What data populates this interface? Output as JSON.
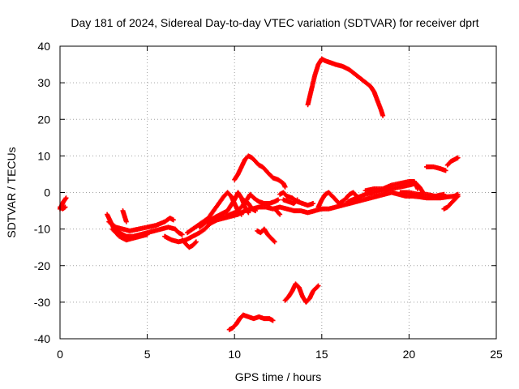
{
  "chart_data": {
    "type": "scatter",
    "title": "Day 181 of 2024, Sidereal Day-to-day VTEC variation (SDTVAR) for receiver dprt",
    "xlabel": "GPS time / hours",
    "ylabel": "SDTVAR / TECUs",
    "xlim": [
      0,
      25
    ],
    "ylim": [
      -40,
      40
    ],
    "xticks": [
      0,
      5,
      10,
      15,
      20,
      25
    ],
    "yticks": [
      -40,
      -30,
      -20,
      -10,
      0,
      10,
      20,
      30,
      40
    ],
    "xtick_labels": [
      "0",
      "5",
      "10",
      "15",
      "20",
      "25"
    ],
    "ytick_labels": [
      "-40",
      "-30",
      "-20",
      "-10",
      "0",
      "10",
      "20",
      "30",
      "40"
    ],
    "grid": true,
    "marker": "plus",
    "color": "#ff0000",
    "tracks": [
      [
        [
          0.0,
          -4.5
        ],
        [
          0.1,
          -3.5
        ],
        [
          0.2,
          -2.5
        ],
        [
          0.35,
          -1.5
        ]
      ],
      [
        [
          0.0,
          -4.0
        ],
        [
          0.15,
          -4.5
        ],
        [
          0.3,
          -4.0
        ]
      ],
      [
        [
          2.7,
          -6
        ],
        [
          2.9,
          -8
        ],
        [
          3.1,
          -10
        ],
        [
          3.4,
          -11
        ],
        [
          3.8,
          -12
        ],
        [
          4.2,
          -12
        ],
        [
          4.6,
          -11.5
        ],
        [
          5.0,
          -11
        ],
        [
          5.4,
          -10.5
        ],
        [
          5.8,
          -10
        ],
        [
          6.2,
          -9.5
        ],
        [
          6.6,
          -10
        ],
        [
          6.8,
          -11
        ],
        [
          7.0,
          -11.5
        ]
      ],
      [
        [
          2.8,
          -8
        ],
        [
          3.2,
          -9.5
        ],
        [
          3.6,
          -10
        ],
        [
          4.0,
          -10.5
        ],
        [
          4.5,
          -10
        ],
        [
          5.0,
          -9.5
        ],
        [
          5.5,
          -9
        ],
        [
          6.0,
          -8
        ],
        [
          6.3,
          -7
        ],
        [
          6.5,
          -7.5
        ]
      ],
      [
        [
          3.0,
          -10
        ],
        [
          3.4,
          -12
        ],
        [
          3.8,
          -13
        ],
        [
          4.2,
          -12.5
        ],
        [
          4.6,
          -12
        ],
        [
          5.0,
          -11.5
        ]
      ],
      [
        [
          3.6,
          -5
        ],
        [
          3.7,
          -6.5
        ],
        [
          3.8,
          -8
        ]
      ],
      [
        [
          6.0,
          -12
        ],
        [
          6.4,
          -13
        ],
        [
          6.8,
          -13.5
        ],
        [
          7.2,
          -13
        ],
        [
          7.6,
          -12
        ],
        [
          8.0,
          -11
        ],
        [
          8.3,
          -10
        ],
        [
          8.6,
          -8.5
        ],
        [
          9.0,
          -7.5
        ],
        [
          9.4,
          -7
        ],
        [
          9.8,
          -6.5
        ],
        [
          10.2,
          -6
        ],
        [
          10.6,
          -5
        ],
        [
          11.0,
          -4.5
        ],
        [
          11.4,
          -4
        ],
        [
          11.8,
          -4
        ],
        [
          12.2,
          -4.5
        ],
        [
          12.6,
          -4
        ],
        [
          13.0,
          -4.5
        ],
        [
          13.4,
          -5
        ],
        [
          13.8,
          -5
        ],
        [
          14.2,
          -5.5
        ],
        [
          14.6,
          -5
        ],
        [
          15.0,
          -4.5
        ],
        [
          15.4,
          -4.5
        ],
        [
          15.8,
          -4
        ],
        [
          16.2,
          -3.5
        ],
        [
          16.6,
          -3
        ],
        [
          17.0,
          -2.5
        ],
        [
          17.4,
          -2
        ],
        [
          17.8,
          -1.5
        ],
        [
          18.2,
          -1
        ],
        [
          18.6,
          -0.5
        ],
        [
          19.0,
          0
        ],
        [
          19.4,
          -0.5
        ],
        [
          19.8,
          -1
        ],
        [
          20.2,
          -1
        ],
        [
          20.6,
          -1.2
        ],
        [
          21.0,
          -1.5
        ],
        [
          21.4,
          -1.5
        ],
        [
          21.8,
          -1.5
        ],
        [
          22.2,
          -1.2
        ],
        [
          22.6,
          -1
        ],
        [
          22.8,
          -0.5
        ]
      ],
      [
        [
          7.0,
          -13
        ],
        [
          7.2,
          -14
        ],
        [
          7.4,
          -15
        ],
        [
          7.6,
          -14.5
        ],
        [
          7.8,
          -13.5
        ]
      ],
      [
        [
          7.3,
          -11
        ],
        [
          7.6,
          -10
        ],
        [
          7.9,
          -9
        ],
        [
          8.2,
          -8
        ],
        [
          8.5,
          -7
        ],
        [
          8.8,
          -5
        ],
        [
          9.1,
          -3
        ],
        [
          9.4,
          -1
        ],
        [
          9.6,
          0
        ],
        [
          9.8,
          -1
        ],
        [
          10.0,
          -3
        ],
        [
          10.2,
          -5
        ],
        [
          10.4,
          -6
        ]
      ],
      [
        [
          8.0,
          -9.5
        ],
        [
          8.4,
          -8
        ],
        [
          8.8,
          -7
        ],
        [
          9.2,
          -6
        ],
        [
          9.6,
          -5
        ],
        [
          10.0,
          -2
        ],
        [
          10.2,
          0
        ],
        [
          10.4,
          -1.5
        ],
        [
          10.6,
          -4
        ],
        [
          10.8,
          -5.5
        ]
      ],
      [
        [
          9.0,
          -7
        ],
        [
          9.5,
          -6.5
        ],
        [
          10.0,
          -5.5
        ],
        [
          10.4,
          -4
        ],
        [
          10.7,
          -2
        ],
        [
          10.9,
          -0.5
        ],
        [
          11.1,
          -1.5
        ],
        [
          11.4,
          -2.5
        ],
        [
          11.7,
          -3
        ],
        [
          12.0,
          -3
        ],
        [
          12.3,
          -2.5
        ],
        [
          12.5,
          -2
        ]
      ],
      [
        [
          10.5,
          -2
        ],
        [
          10.8,
          -3
        ],
        [
          11.0,
          -4.5
        ],
        [
          11.2,
          -5
        ]
      ],
      [
        [
          9.7,
          -37.5
        ],
        [
          9.9,
          -37
        ],
        [
          10.1,
          -36
        ],
        [
          10.3,
          -34.5
        ],
        [
          10.5,
          -33.5
        ],
        [
          10.8,
          -34
        ],
        [
          11.1,
          -34.5
        ],
        [
          11.4,
          -34
        ],
        [
          11.7,
          -34.5
        ],
        [
          12.0,
          -34.5
        ],
        [
          12.2,
          -35
        ]
      ],
      [
        [
          10.0,
          3.5
        ],
        [
          10.2,
          5
        ],
        [
          10.4,
          7
        ],
        [
          10.6,
          9
        ],
        [
          10.8,
          10
        ],
        [
          11.0,
          9.5
        ],
        [
          11.2,
          8.5
        ],
        [
          11.4,
          7.5
        ],
        [
          11.6,
          7
        ],
        [
          11.8,
          6
        ],
        [
          12.0,
          5
        ],
        [
          12.2,
          4
        ],
        [
          12.5,
          3.5
        ],
        [
          12.8,
          2.5
        ],
        [
          12.9,
          1.5
        ]
      ],
      [
        [
          11.3,
          -10.5
        ],
        [
          11.5,
          -11
        ],
        [
          11.7,
          -10
        ],
        [
          11.9,
          -11.5
        ],
        [
          12.1,
          -12.5
        ],
        [
          12.3,
          -13.5
        ]
      ],
      [
        [
          12.4,
          -5
        ],
        [
          12.6,
          -6
        ]
      ],
      [
        [
          12.6,
          -0.5
        ],
        [
          12.8,
          0
        ],
        [
          13.0,
          -1
        ],
        [
          13.3,
          -1.5
        ],
        [
          13.6,
          -2.5
        ],
        [
          13.9,
          -3
        ],
        [
          14.2,
          -3.5
        ],
        [
          14.5,
          -3
        ]
      ],
      [
        [
          12.8,
          -2
        ],
        [
          13.1,
          -2.5
        ],
        [
          13.4,
          -3
        ],
        [
          13.6,
          -2
        ]
      ],
      [
        [
          12.9,
          -29.5
        ],
        [
          13.1,
          -28.5
        ],
        [
          13.3,
          -27
        ],
        [
          13.5,
          -25
        ],
        [
          13.7,
          -26
        ],
        [
          13.9,
          -28.5
        ],
        [
          14.1,
          -30
        ],
        [
          14.3,
          -29
        ],
        [
          14.5,
          -27
        ],
        [
          14.7,
          -26
        ],
        [
          14.8,
          -25.5
        ]
      ],
      [
        [
          14.2,
          24
        ],
        [
          14.3,
          26
        ],
        [
          14.4,
          28
        ],
        [
          14.5,
          30
        ],
        [
          14.6,
          32
        ],
        [
          14.8,
          35
        ],
        [
          15.0,
          36.5
        ],
        [
          15.2,
          36
        ],
        [
          15.5,
          35.5
        ],
        [
          15.8,
          35
        ],
        [
          16.2,
          34.5
        ],
        [
          16.6,
          33.5
        ],
        [
          17.0,
          32
        ],
        [
          17.4,
          30.5
        ],
        [
          17.8,
          29
        ],
        [
          18.0,
          27.5
        ],
        [
          18.2,
          25
        ],
        [
          18.4,
          22.5
        ],
        [
          18.5,
          21
        ]
      ],
      [
        [
          14.8,
          -4
        ],
        [
          15.0,
          -2
        ],
        [
          15.2,
          -0.5
        ],
        [
          15.4,
          0
        ],
        [
          15.6,
          -1
        ],
        [
          15.8,
          -2
        ],
        [
          16.0,
          -3
        ]
      ],
      [
        [
          16.0,
          -3
        ],
        [
          16.3,
          -2
        ],
        [
          16.6,
          -0.5
        ],
        [
          16.8,
          0
        ],
        [
          17.0,
          -1
        ],
        [
          17.2,
          -2
        ]
      ],
      [
        [
          16.5,
          -2.5
        ],
        [
          17.0,
          -1.5
        ],
        [
          17.5,
          -0.5
        ],
        [
          18.0,
          0
        ],
        [
          18.5,
          0.5
        ],
        [
          19.0,
          1
        ],
        [
          19.5,
          1.5
        ],
        [
          20.0,
          2
        ],
        [
          20.4,
          2.5
        ],
        [
          20.6,
          1.5
        ],
        [
          20.8,
          0
        ]
      ],
      [
        [
          17.5,
          0.5
        ],
        [
          18.0,
          1
        ],
        [
          18.5,
          1
        ],
        [
          19.0,
          2
        ],
        [
          19.5,
          2.5
        ],
        [
          20.0,
          3
        ],
        [
          20.3,
          3
        ],
        [
          20.5,
          1
        ]
      ],
      [
        [
          19.5,
          0
        ],
        [
          20.0,
          0
        ],
        [
          20.5,
          -0.5
        ],
        [
          21.0,
          -0.5
        ],
        [
          21.5,
          -1
        ],
        [
          22.0,
          -0.5
        ]
      ],
      [
        [
          21.0,
          7
        ],
        [
          21.4,
          7
        ],
        [
          21.8,
          6.5
        ],
        [
          22.1,
          6
        ]
      ],
      [
        [
          22.2,
          7.5
        ],
        [
          22.4,
          8.5
        ],
        [
          22.6,
          9
        ],
        [
          22.8,
          9.5
        ]
      ],
      [
        [
          22.0,
          -4.5
        ],
        [
          22.2,
          -4
        ],
        [
          22.4,
          -3
        ],
        [
          22.6,
          -2
        ],
        [
          22.8,
          -1
        ]
      ]
    ]
  }
}
